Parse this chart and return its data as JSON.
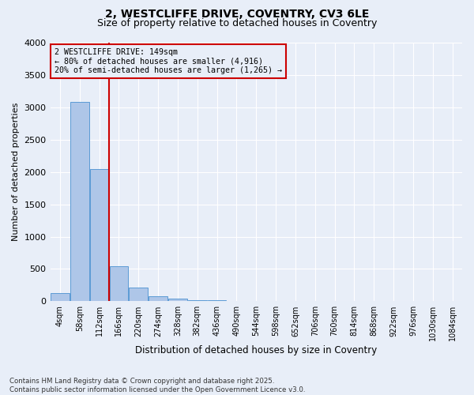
{
  "title1": "2, WESTCLIFFE DRIVE, COVENTRY, CV3 6LE",
  "title2": "Size of property relative to detached houses in Coventry",
  "xlabel": "Distribution of detached houses by size in Coventry",
  "ylabel": "Number of detached properties",
  "footer1": "Contains HM Land Registry data © Crown copyright and database right 2025.",
  "footer2": "Contains public sector information licensed under the Open Government Licence v3.0.",
  "bins": [
    "4sqm",
    "58sqm",
    "112sqm",
    "166sqm",
    "220sqm",
    "274sqm",
    "328sqm",
    "382sqm",
    "436sqm",
    "490sqm",
    "544sqm",
    "598sqm",
    "652sqm",
    "706sqm",
    "760sqm",
    "814sqm",
    "868sqm",
    "922sqm",
    "976sqm",
    "1030sqm",
    "1084sqm"
  ],
  "values": [
    130,
    3080,
    2050,
    540,
    210,
    75,
    35,
    20,
    15,
    5,
    0,
    0,
    0,
    0,
    0,
    0,
    0,
    0,
    0,
    0,
    0
  ],
  "bar_color": "#aec6e8",
  "bar_edge_color": "#5b9bd5",
  "vline_x": 2.5,
  "vline_color": "#cc0000",
  "annotation_title": "2 WESTCLIFFE DRIVE: 149sqm",
  "annotation_line1": "← 80% of detached houses are smaller (4,916)",
  "annotation_line2": "20% of semi-detached houses are larger (1,265) →",
  "annotation_box_color": "#cc0000",
  "ylim": [
    0,
    4000
  ],
  "yticks": [
    0,
    500,
    1000,
    1500,
    2000,
    2500,
    3000,
    3500,
    4000
  ],
  "bg_color": "#e8eef8",
  "grid_color": "#ffffff"
}
